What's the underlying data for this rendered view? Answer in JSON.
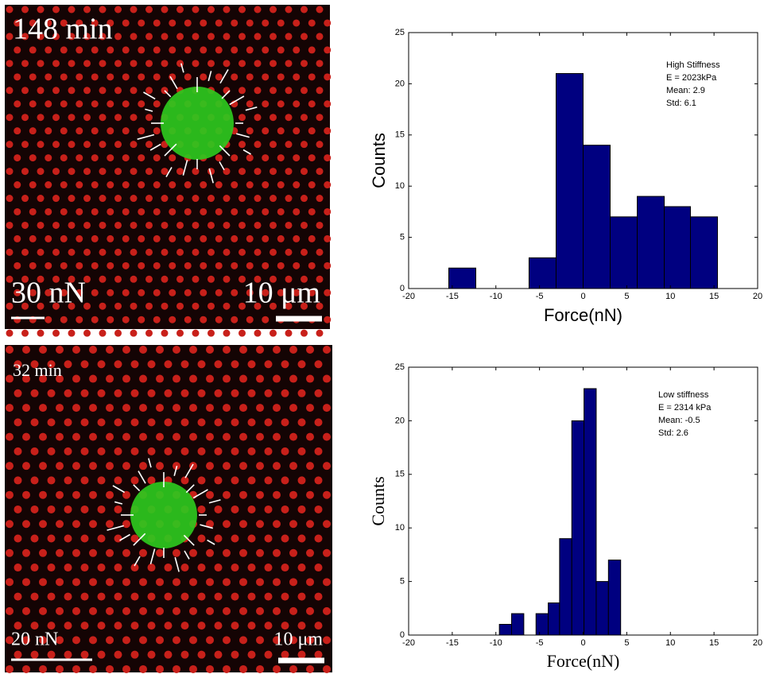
{
  "images": [
    {
      "time": "148 min",
      "force_scale": "30 nN",
      "length_scale": "10 μm"
    },
    {
      "time": "32 min",
      "force_scale": "20 nN",
      "length_scale": "10 μm"
    }
  ],
  "chart_data": [
    {
      "type": "histogram",
      "xlabel": "Force(nN)",
      "ylabel": "Counts",
      "annotations": [
        "High Stiffness",
        "E = 2023kPa",
        "Mean: 2.9",
        "Std: 6.1"
      ],
      "bins": [
        -15.4,
        -12.3,
        -9.3,
        -6.2,
        -3.1,
        0,
        3.1,
        6.2,
        9.3,
        12.3,
        15.4
      ],
      "values": [
        2,
        0,
        0,
        3,
        21,
        14,
        7,
        9,
        8,
        7
      ],
      "color": "#000080",
      "xlim": [
        -20,
        20
      ],
      "xticks": [
        -20,
        -15,
        -10,
        -5,
        0,
        5,
        10,
        15,
        20
      ],
      "ylim": [
        0,
        25
      ],
      "yticks": [
        0,
        5,
        10,
        15,
        20,
        25
      ]
    },
    {
      "type": "histogram",
      "xlabel": "Force(nN)",
      "ylabel": "Counts",
      "annotations": [
        "Low stiffness",
        "E = 2314 kPa",
        "Mean: -0.5",
        "Std: 2.6"
      ],
      "bins": [
        -9.6,
        -8.2,
        -6.8,
        -5.4,
        -4.0,
        -2.7,
        -1.3,
        0.1,
        1.5,
        2.9,
        4.3
      ],
      "values": [
        1,
        2,
        0,
        2,
        3,
        9,
        20,
        23,
        5,
        7
      ],
      "color": "#000080",
      "xlim": [
        -20,
        20
      ],
      "xticks": [
        -20,
        -15,
        -10,
        -5,
        0,
        5,
        10,
        15,
        20
      ],
      "ylim": [
        0,
        25
      ],
      "yticks": [
        0,
        5,
        10,
        15,
        20,
        25
      ]
    }
  ]
}
